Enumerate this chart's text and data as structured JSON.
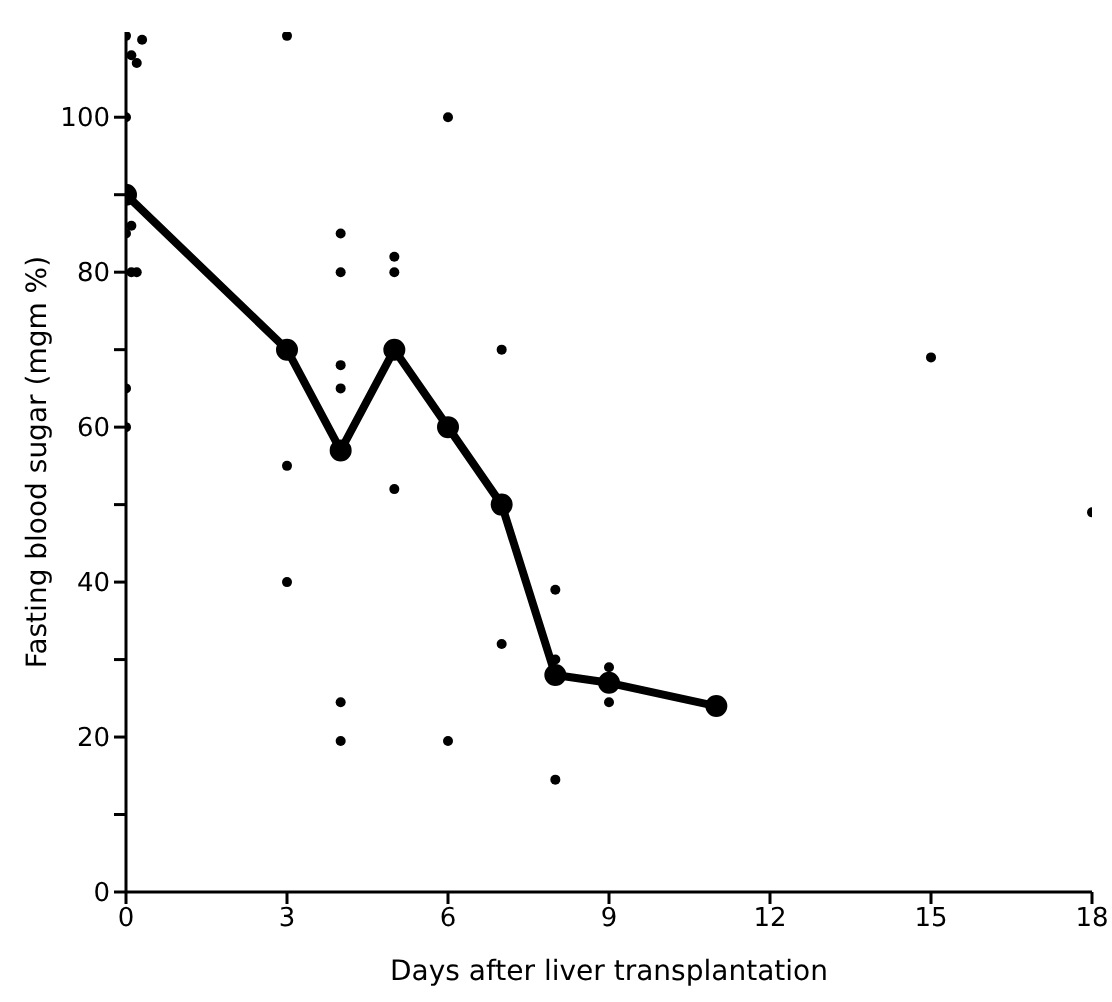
{
  "chart_data": {
    "type": "scatter",
    "xlabel": "Days after liver transplantation",
    "ylabel": "Fasting blood sugar (mgm %)",
    "xlim": [
      0,
      18
    ],
    "xticks": [
      0,
      3,
      6,
      9,
      12,
      15,
      18
    ],
    "ylim": [
      0,
      111
    ],
    "yticks": [
      0,
      {
        "value": 10,
        "label": null
      },
      20,
      {
        "value": 30,
        "label": null
      },
      40,
      {
        "value": 50,
        "label": null
      },
      60,
      {
        "value": 70,
        "label": null
      },
      80,
      {
        "value": 90,
        "label": null
      },
      100
    ],
    "grid": false,
    "marker": "circle",
    "series": [
      {
        "color": "#000000",
        "x": [
          0,
          0.3,
          0.1,
          0.2,
          0,
          0.1,
          0,
          0.2,
          0.1,
          0,
          0,
          3,
          3,
          3,
          4,
          4,
          4,
          4,
          4,
          4,
          5,
          5,
          5,
          6,
          6,
          7,
          7,
          8,
          8,
          8,
          9,
          9,
          15,
          18
        ],
        "values": [
          110.5,
          110,
          108,
          107,
          100,
          86,
          85,
          80,
          80,
          65,
          60,
          110.5,
          55,
          40,
          85,
          80,
          68,
          65,
          24.5,
          19.5,
          82,
          80,
          52,
          100,
          19.5,
          70,
          32,
          39,
          30,
          14.5,
          29,
          24.5,
          69,
          49
        ]
      },
      {
        "type": "line",
        "color": "#000000",
        "x": [
          0,
          3,
          4,
          5,
          6,
          7,
          8,
          9,
          11
        ],
        "values": [
          90,
          70,
          57,
          70,
          60,
          50,
          28,
          27,
          24
        ]
      }
    ]
  }
}
